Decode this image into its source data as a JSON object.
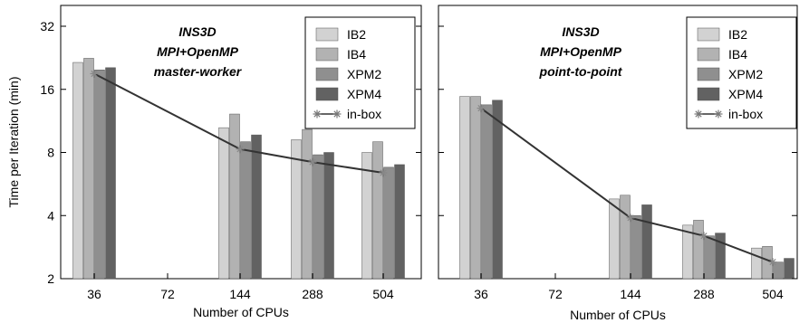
{
  "colors": {
    "IB2": "#d2d2d2",
    "IB4": "#b2b2b2",
    "XPM2": "#8f8f8f",
    "XPM4": "#626262",
    "in-box": "#333333"
  },
  "chart_data": [
    {
      "type": "bar",
      "title": [
        "INS3D",
        "MPI+OpenMP",
        "master-worker"
      ],
      "xlabel": "Number of CPUs",
      "ylabel": "Time per Iteration  (min)",
      "yscale": "log2",
      "ylim": [
        2,
        32
      ],
      "yticks": [
        2,
        4,
        8,
        16,
        32
      ],
      "categories": [
        "36",
        "72",
        "144",
        "288",
        "504"
      ],
      "series": [
        {
          "name": "IB2",
          "values": [
            21.5,
            null,
            10.5,
            9.2,
            8.0
          ]
        },
        {
          "name": "IB4",
          "values": [
            22.5,
            null,
            12.2,
            10.3,
            9.0
          ]
        },
        {
          "name": "XPM2",
          "values": [
            19.8,
            null,
            9.0,
            7.8,
            6.8
          ]
        },
        {
          "name": "XPM4",
          "values": [
            20.3,
            null,
            9.7,
            8.0,
            7.0
          ]
        }
      ],
      "line_series": {
        "name": "in-box",
        "values": [
          19.0,
          null,
          8.3,
          7.2,
          6.4
        ]
      },
      "legend": "top-right"
    },
    {
      "type": "bar",
      "title": [
        "INS3D",
        "MPI+OpenMP",
        "point-to-point"
      ],
      "xlabel": "Number of CPUs",
      "ylabel": "",
      "yscale": "log2",
      "ylim": [
        2,
        32
      ],
      "yticks": [
        2,
        4,
        8,
        16,
        32
      ],
      "categories": [
        "36",
        "72",
        "144",
        "288",
        "504"
      ],
      "series": [
        {
          "name": "IB2",
          "values": [
            14.8,
            null,
            4.8,
            3.6,
            2.8
          ]
        },
        {
          "name": "IB4",
          "values": [
            14.8,
            null,
            5.0,
            3.8,
            2.85
          ]
        },
        {
          "name": "XPM2",
          "values": [
            13.5,
            null,
            4.0,
            3.2,
            2.4
          ]
        },
        {
          "name": "XPM4",
          "values": [
            14.2,
            null,
            4.5,
            3.3,
            2.5
          ]
        }
      ],
      "line_series": {
        "name": "in-box",
        "values": [
          13.0,
          null,
          3.9,
          3.2,
          2.4
        ]
      },
      "legend": "top-right"
    }
  ]
}
